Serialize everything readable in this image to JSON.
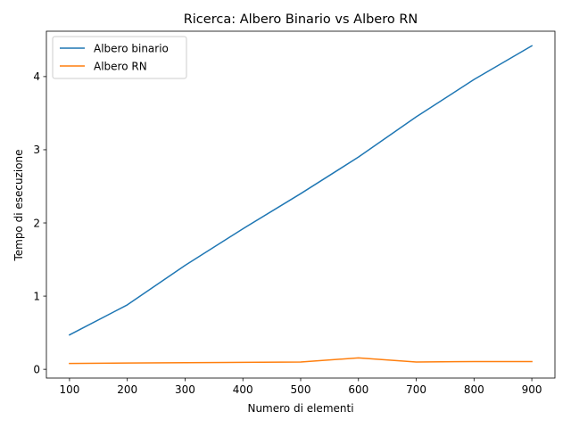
{
  "chart_data": {
    "type": "line",
    "title": "Ricerca: Albero Binario vs Albero RN",
    "xlabel": "Numero di elementi",
    "ylabel": "Tempo di esecuzione",
    "x": [
      100,
      200,
      300,
      400,
      500,
      600,
      700,
      800,
      900
    ],
    "xlim": [
      60,
      940
    ],
    "ylim": [
      -0.12,
      4.62
    ],
    "xticks": [
      100,
      200,
      300,
      400,
      500,
      600,
      700,
      800,
      900
    ],
    "yticks": [
      0,
      1,
      2,
      3,
      4
    ],
    "grid": false,
    "legend_position": "upper-left",
    "series": [
      {
        "name": "Albero binario",
        "color": "#1f77b4",
        "values": [
          0.47,
          0.88,
          1.42,
          1.92,
          2.4,
          2.9,
          3.45,
          3.96,
          4.42
        ]
      },
      {
        "name": "Albero RN",
        "color": "#ff7f0e",
        "values": [
          0.08,
          0.085,
          0.09,
          0.095,
          0.1,
          0.155,
          0.1,
          0.105,
          0.105
        ]
      }
    ]
  }
}
